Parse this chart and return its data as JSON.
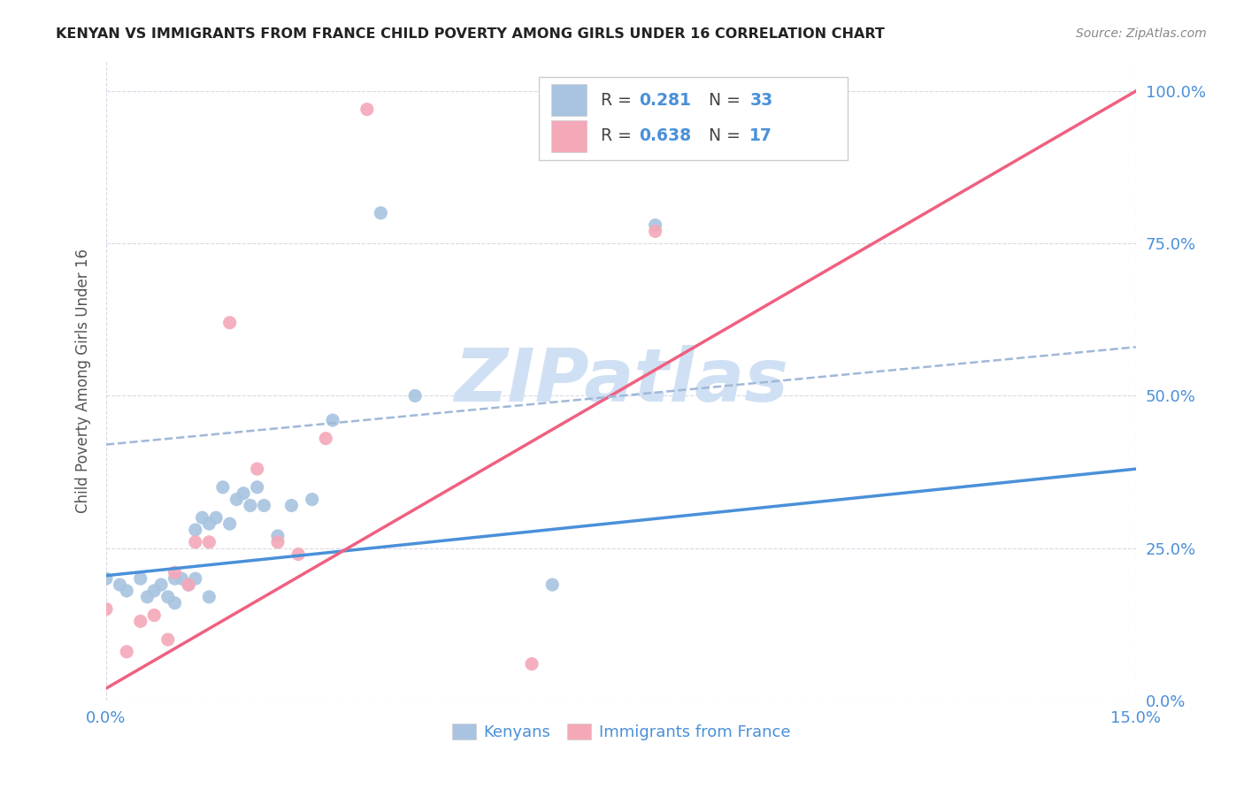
{
  "title": "KENYAN VS IMMIGRANTS FROM FRANCE CHILD POVERTY AMONG GIRLS UNDER 16 CORRELATION CHART",
  "source": "Source: ZipAtlas.com",
  "ylabel": "Child Poverty Among Girls Under 16",
  "xlim": [
    0.0,
    0.15
  ],
  "ylim": [
    0.0,
    1.05
  ],
  "xtick_vals": [
    0.0,
    0.15
  ],
  "ytick_vals": [
    0.0,
    0.25,
    0.5,
    0.75,
    1.0
  ],
  "grid_color": "#d8d8e8",
  "background_color": "#ffffff",
  "kenyan_color": "#a8c4e0",
  "france_color": "#f4a8b8",
  "kenyan_line_color": "#4a90d9",
  "france_line_color": "#f06080",
  "dashed_line_color": "#a0b8d8",
  "watermark": "ZIPatlas",
  "watermark_color": "#d0e0f4",
  "kenyan_x": [
    0.0,
    0.002,
    0.003,
    0.005,
    0.006,
    0.007,
    0.008,
    0.009,
    0.01,
    0.01,
    0.011,
    0.012,
    0.013,
    0.013,
    0.014,
    0.015,
    0.015,
    0.016,
    0.017,
    0.018,
    0.019,
    0.02,
    0.021,
    0.022,
    0.023,
    0.025,
    0.027,
    0.03,
    0.033,
    0.04,
    0.045,
    0.065,
    0.08
  ],
  "kenyan_y": [
    0.2,
    0.19,
    0.18,
    0.2,
    0.17,
    0.18,
    0.19,
    0.17,
    0.16,
    0.2,
    0.2,
    0.19,
    0.2,
    0.28,
    0.3,
    0.17,
    0.29,
    0.3,
    0.35,
    0.29,
    0.33,
    0.34,
    0.32,
    0.35,
    0.32,
    0.27,
    0.32,
    0.33,
    0.46,
    0.8,
    0.5,
    0.19,
    0.78
  ],
  "france_x": [
    0.0,
    0.003,
    0.005,
    0.007,
    0.009,
    0.01,
    0.012,
    0.013,
    0.015,
    0.018,
    0.022,
    0.025,
    0.028,
    0.032,
    0.038,
    0.062,
    0.08
  ],
  "france_y": [
    0.15,
    0.08,
    0.13,
    0.14,
    0.1,
    0.21,
    0.19,
    0.26,
    0.26,
    0.62,
    0.38,
    0.26,
    0.24,
    0.43,
    0.97,
    0.06,
    0.77
  ],
  "kenyan_trend_x": [
    0.0,
    0.15
  ],
  "kenyan_trend_y": [
    0.205,
    0.38
  ],
  "france_trend_x": [
    0.0,
    0.15
  ],
  "france_trend_y": [
    0.02,
    1.0
  ],
  "dashed_trend_x": [
    0.0,
    0.15
  ],
  "dashed_trend_y": [
    0.42,
    0.58
  ],
  "legend_R1_val": "0.281",
  "legend_N1_val": "33",
  "legend_R2_val": "0.638",
  "legend_N2_val": "17",
  "xlabel_labels": [
    "Kenyans",
    "Immigrants from France"
  ],
  "title_color": "#222222",
  "axis_color": "#4a90d9",
  "ylabel_color": "#555555"
}
